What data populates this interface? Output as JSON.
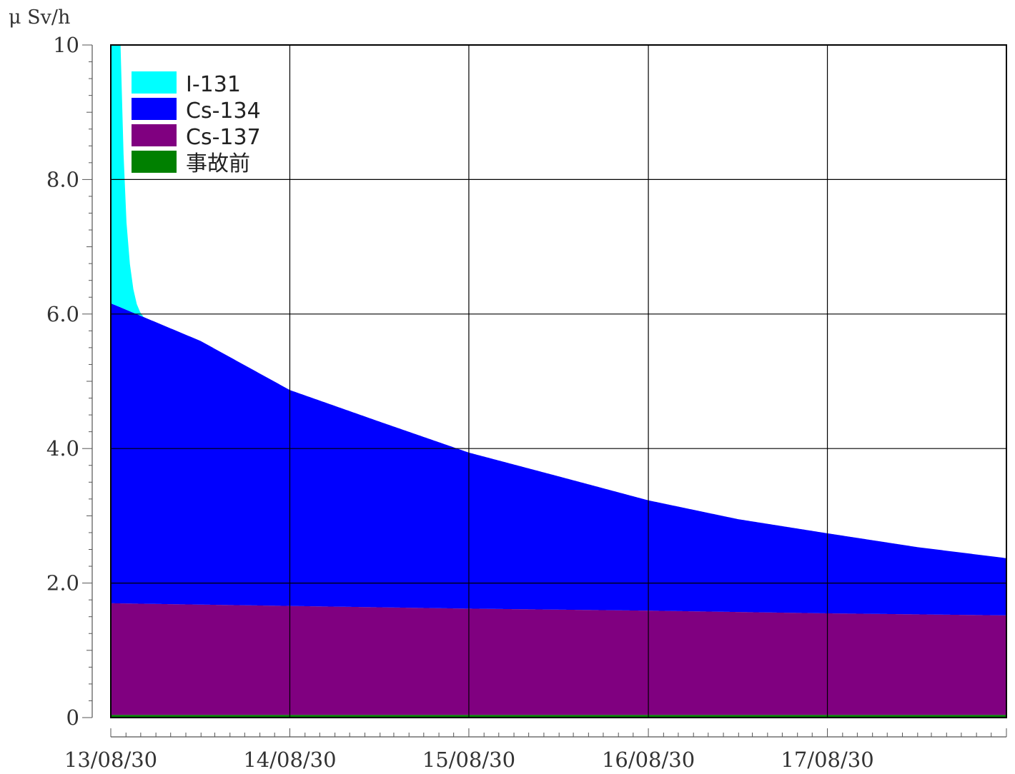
{
  "chart_data": {
    "type": "area",
    "stacked": true,
    "ylabel": "μ Sv/h",
    "xlabel": "",
    "ylim": [
      0,
      10
    ],
    "y_ticks": [
      0,
      2,
      4,
      6,
      8,
      10
    ],
    "y_tick_labels": [
      "0",
      "2.0",
      "4.0",
      "6.0",
      "8.0",
      "10"
    ],
    "x_ticks": [
      "2013-08-30",
      "2014-08-30",
      "2015-08-30",
      "2016-08-30",
      "2017-08-30"
    ],
    "x_tick_labels": [
      "13/08/30",
      "14/08/30",
      "15/08/30",
      "16/08/30",
      "17/08/30"
    ],
    "x_range": [
      "2013-08-30",
      "2018-08-30"
    ],
    "grid": true,
    "legend_position": "top-left",
    "series": [
      {
        "name": "事故前",
        "color": "#008000",
        "x": [
          "2013-08-30",
          "2018-08-30"
        ],
        "values": [
          0.04,
          0.04
        ]
      },
      {
        "name": "Cs-137",
        "color": "#800080",
        "x": [
          "2013-08-30",
          "2014-08-30",
          "2015-08-30",
          "2016-08-30",
          "2017-08-30",
          "2018-08-30"
        ],
        "values": [
          1.66,
          1.62,
          1.58,
          1.55,
          1.51,
          1.48
        ]
      },
      {
        "name": "Cs-134",
        "color": "#0000ff",
        "x": [
          "2013-08-30",
          "2014-03-01",
          "2014-08-30",
          "2015-03-01",
          "2015-08-30",
          "2016-03-01",
          "2016-08-30",
          "2017-03-01",
          "2017-08-30",
          "2018-03-01",
          "2018-08-30"
        ],
        "values": [
          4.46,
          3.92,
          3.21,
          2.76,
          2.32,
          1.98,
          1.64,
          1.38,
          1.19,
          1.0,
          0.85
        ]
      },
      {
        "name": "I-131",
        "color": "#00ffff",
        "x": [
          "2013-08-30",
          "2013-09-05",
          "2013-09-10",
          "2013-09-15",
          "2013-09-20",
          "2013-09-25",
          "2013-10-01",
          "2013-10-08",
          "2013-10-15",
          "2013-10-22",
          "2013-10-29",
          "2013-11-05"
        ],
        "values": [
          10.0,
          10.0,
          8.0,
          5.5,
          3.6,
          2.3,
          1.3,
          0.7,
          0.35,
          0.15,
          0.05,
          0.0
        ]
      }
    ],
    "legend_order": [
      "I-131",
      "Cs-134",
      "Cs-137",
      "事故前"
    ]
  }
}
